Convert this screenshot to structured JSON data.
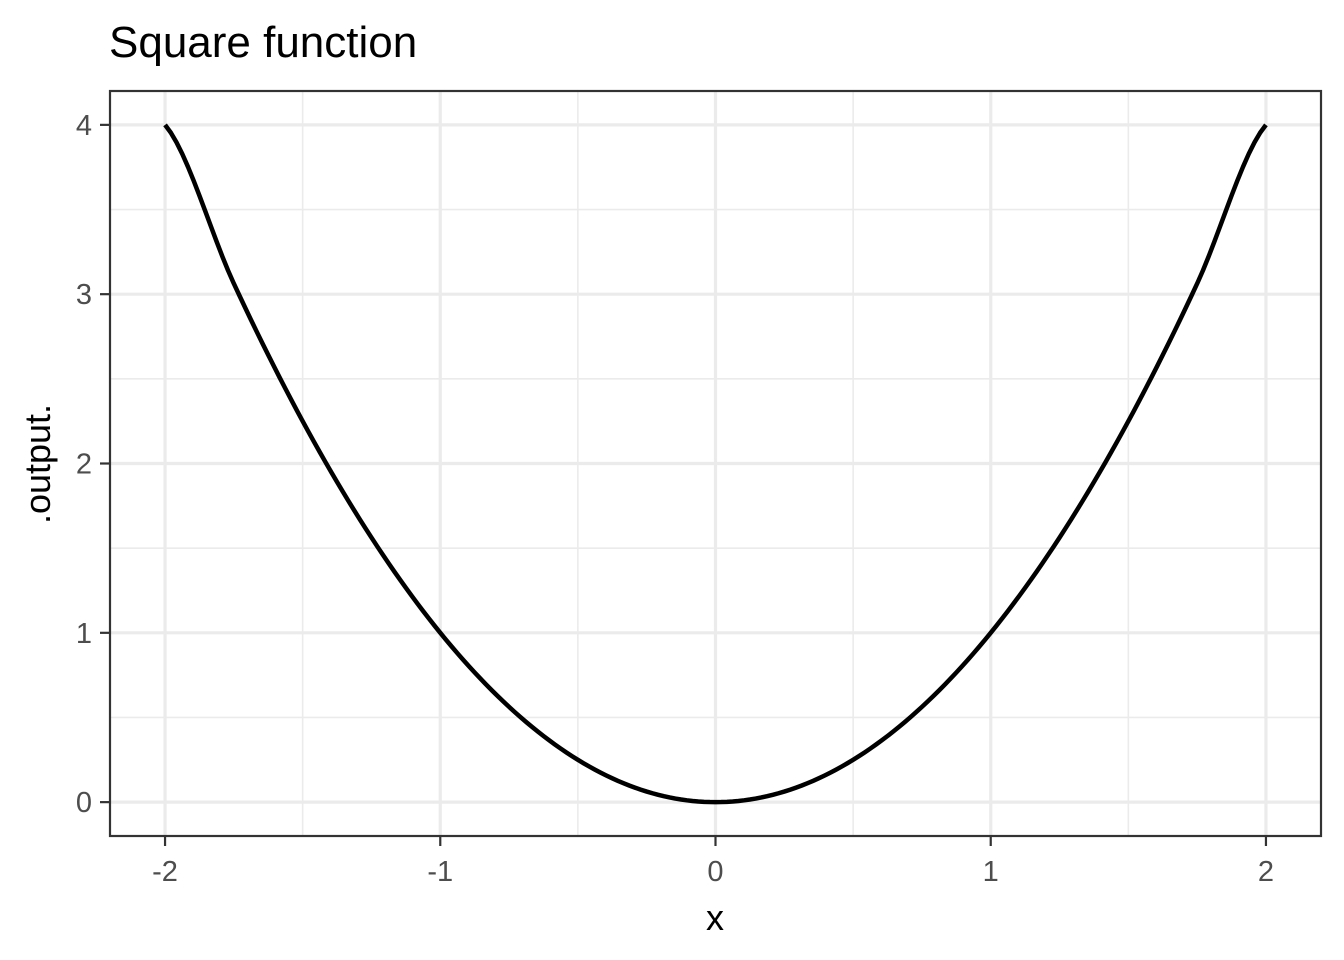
{
  "chart_data": {
    "type": "line",
    "title": "Square function",
    "xlabel": "x",
    "ylabel": ".output.",
    "xlim": [
      -2.2,
      2.2
    ],
    "ylim": [
      -0.2,
      4.2
    ],
    "x_ticks": [
      -2,
      -1,
      0,
      1,
      2
    ],
    "x_tick_labels": [
      "-2",
      "-1",
      "0",
      "1",
      "2"
    ],
    "y_ticks": [
      0,
      1,
      2,
      3,
      4
    ],
    "y_tick_labels": [
      "0",
      "1",
      "2",
      "3",
      "4"
    ],
    "x_minor": [
      -1.5,
      -0.5,
      0.5,
      1.5
    ],
    "y_minor": [
      0.5,
      1.5,
      2.5,
      3.5
    ],
    "grid": true,
    "series": [
      {
        "x": [
          -2,
          -1.75,
          -1.5,
          -1.25,
          -1,
          -0.75,
          -0.5,
          -0.25,
          0,
          0.25,
          0.5,
          0.75,
          1,
          1.25,
          1.5,
          1.75,
          2
        ],
        "y": [
          4,
          3.0625,
          2.25,
          1.5625,
          1,
          0.5625,
          0.25,
          0.0625,
          0,
          0.0625,
          0.25,
          0.5625,
          1,
          1.5625,
          2.25,
          3.0625,
          4
        ],
        "color": "#000000"
      }
    ]
  }
}
